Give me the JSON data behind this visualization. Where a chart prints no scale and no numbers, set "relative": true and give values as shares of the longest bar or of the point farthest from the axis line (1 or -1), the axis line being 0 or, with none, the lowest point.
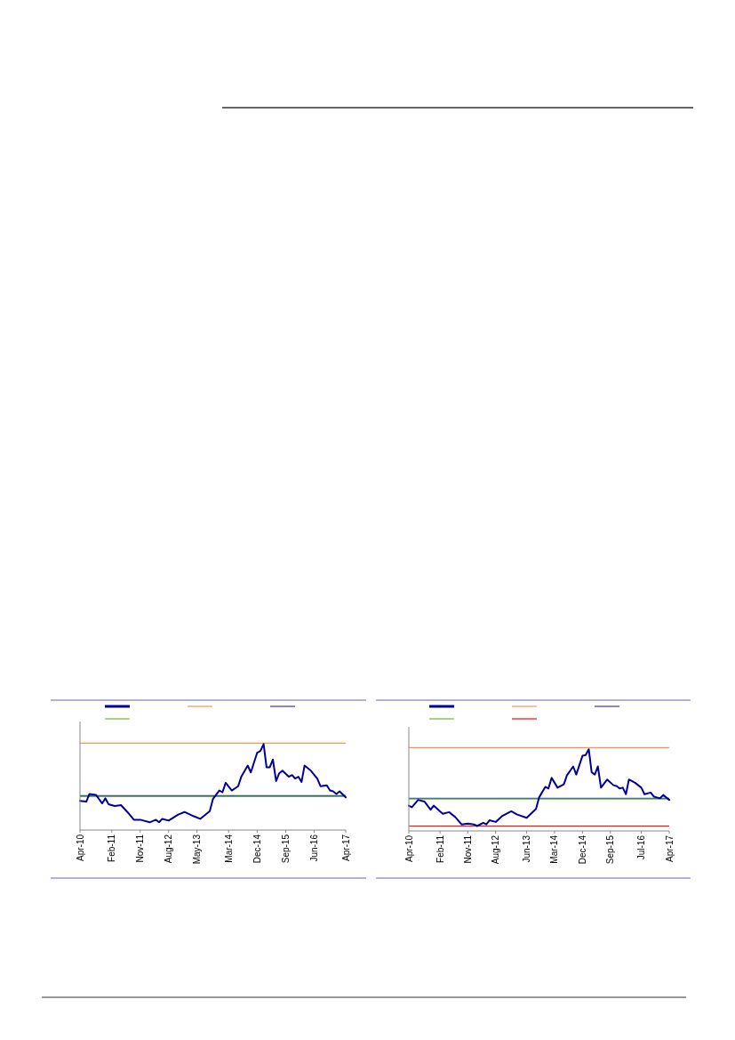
{
  "chart_data": [
    {
      "type": "line",
      "relative": true,
      "xlim": [
        "2010-04",
        "2017-04"
      ],
      "xticks": [
        {
          "value": "2010-04",
          "label": "Apr-10"
        },
        {
          "value": "2011-02",
          "label": "Feb-11"
        },
        {
          "value": "2011-11",
          "label": "Nov-11"
        },
        {
          "value": "2012-08",
          "label": "Aug-12"
        },
        {
          "value": "2013-05",
          "label": "May-13"
        },
        {
          "value": "2014-03",
          "label": "Mar-14"
        },
        {
          "value": "2014-12",
          "label": "Dec-14"
        },
        {
          "value": "2015-09",
          "label": "Sep-15"
        },
        {
          "value": "2016-06",
          "label": "Jun-16"
        },
        {
          "value": "2017-04",
          "label": "Apr-17"
        }
      ],
      "series": [
        {
          "color": "#000099",
          "x": [
            "2010-04",
            "2010-06",
            "2010-07",
            "2010-09",
            "2010-11",
            "2010-12",
            "2011-01",
            "2011-03",
            "2011-05",
            "2011-07",
            "2011-09",
            "2011-11",
            "2012-02",
            "2012-04",
            "2012-05",
            "2012-06",
            "2012-08",
            "2012-11",
            "2013-01",
            "2013-04",
            "2013-06",
            "2013-09",
            "2013-10",
            "2013-12",
            "2014-01",
            "2014-02",
            "2014-04",
            "2014-06",
            "2014-07",
            "2014-09",
            "2014-10",
            "2014-12",
            "2015-01",
            "2015-02",
            "2015-03",
            "2015-04",
            "2015-05",
            "2015-06",
            "2015-07",
            "2015-08",
            "2015-10",
            "2015-11",
            "2015-12",
            "2016-01",
            "2016-02",
            "2016-03",
            "2016-05",
            "2016-07",
            "2016-08",
            "2016-10",
            "2016-11",
            "2016-12",
            "2017-01",
            "2017-02",
            "2017-04"
          ],
          "values": [
            0.34,
            0.33,
            0.42,
            0.41,
            0.31,
            0.37,
            0.3,
            0.28,
            0.29,
            0.21,
            0.12,
            0.12,
            0.09,
            0.12,
            0.09,
            0.13,
            0.11,
            0.18,
            0.21,
            0.16,
            0.13,
            0.22,
            0.36,
            0.46,
            0.44,
            0.55,
            0.46,
            0.51,
            0.62,
            0.75,
            0.67,
            0.9,
            0.92,
            1.0,
            0.73,
            0.73,
            0.82,
            0.57,
            0.66,
            0.69,
            0.62,
            0.64,
            0.6,
            0.62,
            0.56,
            0.75,
            0.69,
            0.6,
            0.51,
            0.52,
            0.46,
            0.45,
            0.42,
            0.45,
            0.38
          ]
        }
      ],
      "ref_lines": [
        {
          "axis": "y",
          "value": 1.01,
          "color": "#f79646"
        },
        {
          "axis": "y",
          "value": 0.4,
          "color": "#3333cc"
        },
        {
          "axis": "y",
          "value": 0.39,
          "color": "#66bb33"
        }
      ]
    },
    {
      "type": "line",
      "relative": true,
      "xlim": [
        "2010-04",
        "2017-04"
      ],
      "xticks": [
        {
          "value": "2010-04",
          "label": "Apr-10"
        },
        {
          "value": "2011-02",
          "label": "Feb-11"
        },
        {
          "value": "2011-11",
          "label": "Nov-11"
        },
        {
          "value": "2012-08",
          "label": "Aug-12"
        },
        {
          "value": "2013-06",
          "label": "Jun-13"
        },
        {
          "value": "2014-03",
          "label": "Mar-14"
        },
        {
          "value": "2014-12",
          "label": "Dec-14"
        },
        {
          "value": "2015-09",
          "label": "Sep-15"
        },
        {
          "value": "2016-07",
          "label": "Jul-16"
        },
        {
          "value": "2017-04",
          "label": "Apr-17"
        }
      ],
      "series": [
        {
          "color": "#000099",
          "x": [
            "2010-04",
            "2010-05",
            "2010-07",
            "2010-09",
            "2010-11",
            "2010-12",
            "2011-02",
            "2011-03",
            "2011-05",
            "2011-07",
            "2011-09",
            "2011-11",
            "2012-01",
            "2012-02",
            "2012-04",
            "2012-05",
            "2012-06",
            "2012-08",
            "2012-10",
            "2013-01",
            "2013-03",
            "2013-06",
            "2013-09",
            "2013-10",
            "2013-12",
            "2014-01",
            "2014-02",
            "2014-04",
            "2014-06",
            "2014-07",
            "2014-09",
            "2014-10",
            "2014-12",
            "2015-01",
            "2015-02",
            "2015-03",
            "2015-04",
            "2015-05",
            "2015-06",
            "2015-08",
            "2015-10",
            "2015-11",
            "2015-12",
            "2016-01",
            "2016-02",
            "2016-03",
            "2016-05",
            "2016-07",
            "2016-08",
            "2016-10",
            "2016-11",
            "2016-12",
            "2017-01",
            "2017-02",
            "2017-04"
          ],
          "values": [
            0.31,
            0.29,
            0.38,
            0.36,
            0.26,
            0.31,
            0.24,
            0.21,
            0.23,
            0.17,
            0.08,
            0.09,
            0.08,
            0.06,
            0.1,
            0.08,
            0.13,
            0.11,
            0.18,
            0.24,
            0.2,
            0.16,
            0.27,
            0.41,
            0.54,
            0.52,
            0.65,
            0.53,
            0.57,
            0.68,
            0.79,
            0.69,
            0.92,
            0.93,
            1.0,
            0.72,
            0.69,
            0.79,
            0.53,
            0.63,
            0.56,
            0.55,
            0.52,
            0.53,
            0.45,
            0.63,
            0.59,
            0.53,
            0.45,
            0.47,
            0.42,
            0.41,
            0.4,
            0.44,
            0.38
          ]
        }
      ],
      "ref_lines": [
        {
          "axis": "y",
          "value": 1.02,
          "color": "#f79646"
        },
        {
          "axis": "y",
          "value": 0.4,
          "color": "#3333cc"
        },
        {
          "axis": "y",
          "value": 0.39,
          "color": "#66bb33"
        },
        {
          "axis": "y",
          "value": 0.06,
          "color": "#ff0000"
        }
      ]
    }
  ]
}
